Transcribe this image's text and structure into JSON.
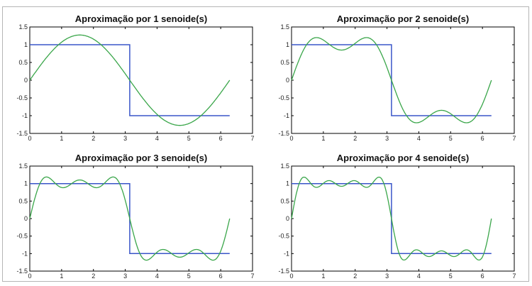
{
  "chart_data": [
    {
      "type": "line",
      "title": "Aproximação por 1 senoide(s)",
      "xlim": [
        0,
        7
      ],
      "ylim": [
        -1.5,
        1.5
      ],
      "xticks": [
        "0",
        "1",
        "2",
        "3",
        "4",
        "5",
        "6",
        "7"
      ],
      "yticks": [
        "1.5",
        "1",
        "0.5",
        "0",
        "-0.5",
        "-1",
        "-1.5"
      ],
      "grid": false,
      "series": [
        {
          "kind": "square-wave",
          "color": "#3a56c8",
          "x": [
            0,
            3.1416,
            3.1416,
            6.2832
          ],
          "y": [
            1,
            1,
            -1,
            -1
          ]
        },
        {
          "kind": "fourier-sum",
          "color": "#3aa64a",
          "terms": 1,
          "x_range": [
            0,
            6.2832
          ],
          "x_samples": [
            0,
            1.5708,
            3.1416,
            4.7124,
            6.2832
          ],
          "y_samples": [
            0,
            1.27,
            0,
            -1.27,
            0
          ]
        }
      ]
    },
    {
      "type": "line",
      "title": "Aproximação por 2 senoide(s)",
      "xlim": [
        0,
        7
      ],
      "ylim": [
        -1.5,
        1.5
      ],
      "xticks": [
        "0",
        "1",
        "2",
        "3",
        "4",
        "5",
        "6",
        "7"
      ],
      "yticks": [
        "1.5",
        "1",
        "0.5",
        "0",
        "-0.5",
        "-1",
        "-1.5"
      ],
      "grid": false,
      "series": [
        {
          "kind": "square-wave",
          "color": "#3a56c8",
          "x": [
            0,
            3.1416,
            3.1416,
            6.2832
          ],
          "y": [
            1,
            1,
            -1,
            -1
          ]
        },
        {
          "kind": "fourier-sum",
          "color": "#3aa64a",
          "terms": 2,
          "x_range": [
            0,
            6.2832
          ],
          "x_samples": [
            0,
            0.785,
            1.5708,
            2.356,
            3.1416,
            3.927,
            4.7124,
            5.498,
            6.2832
          ],
          "y_samples": [
            0,
            1.2,
            0.85,
            1.2,
            0,
            -1.2,
            -0.85,
            -1.2,
            0
          ]
        }
      ]
    },
    {
      "type": "line",
      "title": "Aproximação por 3 senoide(s)",
      "xlim": [
        0,
        7
      ],
      "ylim": [
        -1.5,
        1.5
      ],
      "xticks": [
        "0",
        "1",
        "2",
        "3",
        "4",
        "5",
        "6",
        "7"
      ],
      "yticks": [
        "1.5",
        "1",
        "0.5",
        "0",
        "-0.5",
        "-1",
        "-1.5"
      ],
      "grid": false,
      "series": [
        {
          "kind": "square-wave",
          "color": "#3a56c8",
          "x": [
            0,
            3.1416,
            3.1416,
            6.2832
          ],
          "y": [
            1,
            1,
            -1,
            -1
          ]
        },
        {
          "kind": "fourier-sum",
          "color": "#3aa64a",
          "terms": 3,
          "x_range": [
            0,
            6.2832
          ],
          "x_samples": [
            0,
            0.52,
            1.05,
            1.5708,
            2.09,
            2.62,
            3.1416,
            3.67,
            4.19,
            4.7124,
            5.24,
            5.76,
            6.2832
          ],
          "y_samples": [
            0,
            1.18,
            0.9,
            1.1,
            0.9,
            1.18,
            0,
            -1.18,
            -0.9,
            -1.1,
            -0.9,
            -1.18,
            0
          ]
        }
      ]
    },
    {
      "type": "line",
      "title": "Aproximação por 4 senoide(s)",
      "xlim": [
        0,
        7
      ],
      "ylim": [
        -1.5,
        1.5
      ],
      "xticks": [
        "0",
        "1",
        "2",
        "3",
        "4",
        "5",
        "6",
        "7"
      ],
      "yticks": [
        "1.5",
        "1",
        "0.5",
        "0",
        "-0.5",
        "-1",
        "-1.5"
      ],
      "grid": false,
      "series": [
        {
          "kind": "square-wave",
          "color": "#3a56c8",
          "x": [
            0,
            3.1416,
            3.1416,
            6.2832
          ],
          "y": [
            1,
            1,
            -1,
            -1
          ]
        },
        {
          "kind": "fourier-sum",
          "color": "#3aa64a",
          "terms": 4,
          "x_range": [
            0,
            6.2832
          ],
          "x_samples": [
            0,
            0.39,
            0.79,
            1.18,
            1.5708,
            1.96,
            2.36,
            2.75,
            3.1416,
            3.53,
            3.93,
            4.32,
            4.7124,
            5.11,
            5.5,
            5.89,
            6.2832
          ],
          "y_samples": [
            0,
            1.17,
            0.93,
            1.07,
            0.91,
            1.07,
            0.93,
            1.17,
            0,
            -1.17,
            -0.93,
            -1.07,
            -0.91,
            -1.07,
            -0.93,
            -1.17,
            0
          ]
        }
      ]
    }
  ]
}
